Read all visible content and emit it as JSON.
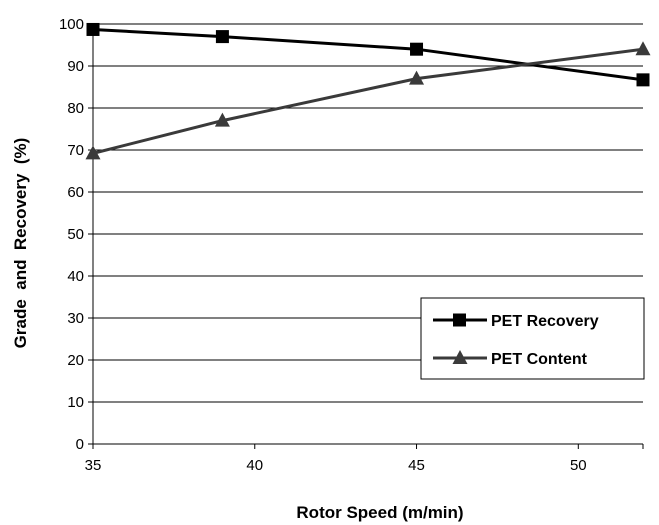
{
  "chart_data": {
    "type": "line",
    "xlabel": "Rotor Speed (m/min)",
    "ylabel": "Grade  and  Recovery  (%)",
    "xlim": [
      35,
      52
    ],
    "ylim": [
      0,
      100
    ],
    "xticks": [
      35,
      40,
      45,
      50
    ],
    "yticks": [
      0,
      10,
      20,
      30,
      40,
      50,
      60,
      70,
      80,
      90,
      100
    ],
    "grid": "horizontal",
    "legend_position": "bottom-right",
    "series": [
      {
        "name": "PET Recovery",
        "marker": "square",
        "color": "#000000",
        "x": [
          35,
          39,
          45,
          52
        ],
        "values": [
          98.7,
          97,
          94,
          86.7
        ]
      },
      {
        "name": "PET Content",
        "marker": "triangle",
        "color": "#3a3a3a",
        "x": [
          35,
          39,
          45,
          52
        ],
        "values": [
          69.2,
          77,
          87,
          94
        ]
      }
    ]
  }
}
